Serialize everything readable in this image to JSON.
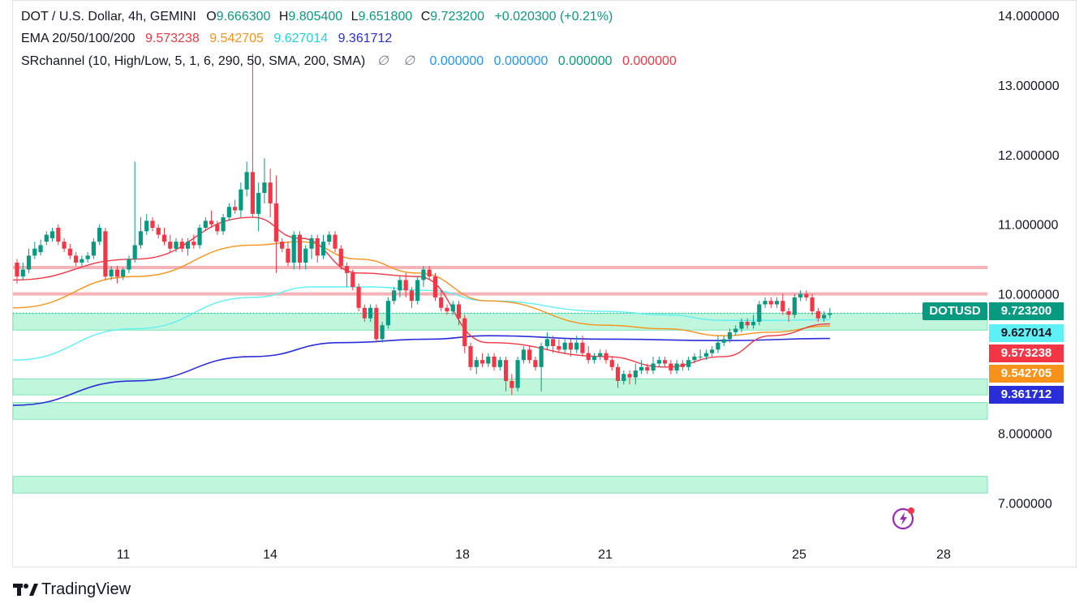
{
  "header": {
    "symbol": "DOT / U.S. Dollar, 4h, GEMINI",
    "o_label": "O",
    "o": "9.666300",
    "h_label": "H",
    "h": "9.805400",
    "l_label": "L",
    "l": "9.651800",
    "c_label": "C",
    "c": "9.723200",
    "change": "+0.020300 (+0.21%)"
  },
  "ema_legend": {
    "name": "EMA 20/50/100/200",
    "v20": "9.573238",
    "v50": "9.542705",
    "v100": "9.627014",
    "v200": "9.361712"
  },
  "sr_legend": {
    "name": "SRchannel (10, High/Low, 5, 1, 6, 290, 50, SMA, 200, SMA)",
    "na1": "∅",
    "na2": "∅",
    "v1": "0.000000",
    "v2": "0.000000",
    "v3": "0.000000",
    "v4": "0.000000"
  },
  "price_tags": {
    "symbol": "DOTUSD",
    "last": "9.723200",
    "ema100": "9.627014",
    "ema20": "9.573238",
    "ema50": "9.542705",
    "ema200": "9.361712"
  },
  "brand": {
    "name": "TradingView"
  },
  "colors": {
    "up": "#089981",
    "down": "#f23645",
    "ema20": "#f23645",
    "ema50": "#f7931a",
    "ema100": "#5ff0f5",
    "ema200": "#2a2ed8",
    "sr_zone": "#b9f5d8",
    "sr_line": "#f5b3b7"
  },
  "chart_data": {
    "type": "candlestick",
    "interval": "4h",
    "ylim": [
      6.6,
      14.2
    ],
    "y_ticks": [
      "14.000000",
      "13.000000",
      "12.000000",
      "11.000000",
      "10.000000",
      "8.000000",
      "7.000000"
    ],
    "x_ticks": [
      "11",
      "14",
      "18",
      "21",
      "25",
      "28"
    ],
    "candles": [
      [
        10.45,
        10.25,
        10.5,
        10.15
      ],
      [
        10.25,
        10.35,
        10.45,
        10.2
      ],
      [
        10.35,
        10.55,
        10.65,
        10.3
      ],
      [
        10.55,
        10.65,
        10.75,
        10.5
      ],
      [
        10.6,
        10.7,
        10.78,
        10.55
      ],
      [
        10.75,
        10.85,
        10.9,
        10.7
      ],
      [
        10.8,
        10.9,
        10.95,
        10.75
      ],
      [
        10.95,
        10.75,
        11.0,
        10.7
      ],
      [
        10.75,
        10.65,
        10.8,
        10.6
      ],
      [
        10.65,
        10.55,
        10.72,
        10.5
      ],
      [
        10.55,
        10.45,
        10.6,
        10.4
      ],
      [
        10.45,
        10.5,
        10.55,
        10.4
      ],
      [
        10.5,
        10.55,
        10.6,
        10.45
      ],
      [
        10.55,
        10.75,
        10.8,
        10.5
      ],
      [
        10.75,
        10.95,
        11.0,
        10.7
      ],
      [
        10.9,
        10.25,
        10.95,
        10.2
      ],
      [
        10.25,
        10.35,
        10.4,
        10.2
      ],
      [
        10.35,
        10.25,
        10.4,
        10.15
      ],
      [
        10.25,
        10.35,
        10.38,
        10.2
      ],
      [
        10.35,
        10.5,
        10.55,
        10.3
      ],
      [
        10.5,
        10.7,
        11.9,
        10.45
      ],
      [
        10.7,
        10.9,
        11.1,
        10.65
      ],
      [
        10.9,
        11.05,
        11.15,
        10.85
      ],
      [
        11.05,
        10.95,
        11.1,
        10.9
      ],
      [
        10.95,
        10.85,
        11.0,
        10.8
      ],
      [
        10.85,
        10.75,
        10.95,
        10.7
      ],
      [
        10.75,
        10.65,
        10.85,
        10.6
      ],
      [
        10.65,
        10.75,
        10.8,
        10.6
      ],
      [
        10.75,
        10.65,
        10.8,
        10.6
      ],
      [
        10.65,
        10.75,
        10.8,
        10.55
      ],
      [
        10.75,
        10.7,
        10.85,
        10.65
      ],
      [
        10.7,
        10.95,
        11.0,
        10.65
      ],
      [
        10.95,
        11.05,
        11.1,
        10.9
      ],
      [
        11.05,
        11.0,
        11.2,
        10.95
      ],
      [
        11.0,
        10.9,
        11.05,
        10.85
      ],
      [
        10.9,
        11.1,
        11.15,
        10.85
      ],
      [
        11.1,
        11.25,
        11.3,
        11.05
      ],
      [
        11.25,
        11.2,
        11.35,
        11.15
      ],
      [
        11.2,
        11.5,
        11.6,
        11.1
      ],
      [
        11.5,
        11.75,
        11.9,
        11.4
      ],
      [
        11.75,
        11.15,
        13.45,
        11.1
      ],
      [
        11.15,
        11.45,
        11.6,
        10.9
      ],
      [
        11.45,
        11.6,
        11.95,
        11.3
      ],
      [
        11.6,
        11.3,
        11.8,
        11.1
      ],
      [
        11.3,
        10.75,
        11.7,
        10.3
      ],
      [
        10.75,
        10.65,
        10.8,
        10.6
      ],
      [
        10.65,
        10.45,
        10.75,
        10.4
      ],
      [
        10.45,
        10.85,
        10.9,
        10.35
      ],
      [
        10.85,
        10.45,
        10.9,
        10.35
      ],
      [
        10.45,
        10.65,
        10.7,
        10.35
      ],
      [
        10.65,
        10.8,
        10.85,
        10.5
      ],
      [
        10.8,
        10.55,
        10.85,
        10.45
      ],
      [
        10.55,
        10.75,
        10.85,
        10.5
      ],
      [
        10.75,
        10.85,
        10.9,
        10.7
      ],
      [
        10.85,
        10.65,
        10.9,
        10.6
      ],
      [
        10.65,
        10.4,
        10.7,
        10.35
      ],
      [
        10.4,
        10.3,
        10.45,
        10.1
      ],
      [
        10.3,
        10.1,
        10.35,
        10.05
      ],
      [
        10.1,
        9.8,
        10.15,
        9.75
      ],
      [
        9.8,
        9.65,
        9.85,
        9.6
      ],
      [
        9.65,
        9.8,
        9.85,
        9.6
      ],
      [
        9.8,
        9.35,
        9.85,
        9.3
      ],
      [
        9.35,
        9.55,
        9.6,
        9.3
      ],
      [
        9.55,
        9.9,
        9.95,
        9.5
      ],
      [
        9.9,
        10.05,
        10.1,
        9.85
      ],
      [
        10.05,
        10.2,
        10.25,
        9.95
      ],
      [
        10.2,
        10.05,
        10.3,
        9.95
      ],
      [
        10.05,
        9.9,
        10.1,
        9.8
      ],
      [
        9.9,
        10.2,
        10.25,
        9.85
      ],
      [
        10.2,
        10.35,
        10.4,
        10.1
      ],
      [
        10.35,
        10.25,
        10.4,
        10.2
      ],
      [
        10.25,
        9.95,
        10.3,
        9.9
      ],
      [
        9.95,
        9.8,
        10.05,
        9.75
      ],
      [
        9.8,
        9.75,
        9.85,
        9.7
      ],
      [
        9.75,
        9.85,
        9.9,
        9.7
      ],
      [
        9.85,
        9.65,
        9.9,
        9.55
      ],
      [
        9.65,
        9.25,
        9.7,
        9.15
      ],
      [
        9.25,
        8.95,
        9.3,
        8.9
      ],
      [
        8.95,
        9.05,
        9.1,
        8.85
      ],
      [
        9.05,
        9.0,
        9.15,
        8.95
      ],
      [
        9.0,
        9.1,
        9.15,
        8.95
      ],
      [
        9.1,
        8.95,
        9.15,
        8.9
      ],
      [
        8.95,
        9.05,
        9.1,
        8.9
      ],
      [
        9.05,
        8.75,
        9.1,
        8.6
      ],
      [
        8.75,
        8.65,
        8.85,
        8.55
      ],
      [
        8.65,
        9.05,
        9.1,
        8.6
      ],
      [
        9.05,
        9.2,
        9.25,
        9.0
      ],
      [
        9.2,
        9.05,
        9.25,
        9.0
      ],
      [
        9.05,
        8.95,
        9.1,
        8.9
      ],
      [
        8.95,
        9.25,
        9.3,
        8.6
      ],
      [
        9.25,
        9.35,
        9.45,
        9.2
      ],
      [
        9.35,
        9.25,
        9.4,
        9.15
      ],
      [
        9.25,
        9.2,
        9.35,
        9.15
      ],
      [
        9.2,
        9.3,
        9.35,
        9.15
      ],
      [
        9.3,
        9.2,
        9.35,
        9.1
      ],
      [
        9.2,
        9.3,
        9.4,
        9.15
      ],
      [
        9.3,
        9.15,
        9.4,
        9.1
      ],
      [
        9.15,
        9.05,
        9.25,
        9.0
      ],
      [
        9.05,
        9.1,
        9.15,
        9.0
      ],
      [
        9.1,
        9.15,
        9.2,
        9.05
      ],
      [
        9.15,
        9.05,
        9.2,
        9.0
      ],
      [
        9.05,
        8.95,
        9.1,
        8.9
      ],
      [
        8.95,
        8.75,
        9.0,
        8.65
      ],
      [
        8.75,
        8.85,
        8.9,
        8.7
      ],
      [
        8.85,
        8.8,
        8.9,
        8.7
      ],
      [
        8.8,
        8.9,
        9.0,
        8.7
      ],
      [
        8.9,
        8.95,
        9.05,
        8.85
      ],
      [
        8.95,
        8.9,
        9.0,
        8.85
      ],
      [
        8.9,
        9.0,
        9.1,
        8.85
      ],
      [
        9.0,
        9.05,
        9.1,
        8.95
      ],
      [
        9.05,
        9.0,
        9.1,
        8.95
      ],
      [
        9.0,
        8.9,
        9.05,
        8.85
      ],
      [
        8.9,
        9.0,
        9.05,
        8.85
      ],
      [
        9.0,
        8.95,
        9.05,
        8.9
      ],
      [
        8.95,
        9.05,
        9.1,
        8.9
      ],
      [
        9.05,
        9.1,
        9.15,
        9.0
      ],
      [
        9.1,
        9.1,
        9.2,
        9.05
      ],
      [
        9.1,
        9.15,
        9.2,
        9.05
      ],
      [
        9.15,
        9.2,
        9.25,
        9.1
      ],
      [
        9.2,
        9.3,
        9.4,
        9.15
      ],
      [
        9.3,
        9.35,
        9.4,
        9.25
      ],
      [
        9.35,
        9.45,
        9.5,
        9.3
      ],
      [
        9.45,
        9.5,
        9.55,
        9.4
      ],
      [
        9.5,
        9.6,
        9.65,
        9.45
      ],
      [
        9.6,
        9.55,
        9.65,
        9.5
      ],
      [
        9.55,
        9.6,
        9.7,
        9.5
      ],
      [
        9.6,
        9.85,
        9.9,
        9.55
      ],
      [
        9.85,
        9.9,
        9.95,
        9.8
      ],
      [
        9.9,
        9.85,
        9.95,
        9.8
      ],
      [
        9.85,
        9.9,
        9.95,
        9.8
      ],
      [
        9.9,
        9.75,
        10.0,
        9.7
      ],
      [
        9.75,
        9.7,
        9.8,
        9.6
      ],
      [
        9.7,
        9.95,
        10.0,
        9.65
      ],
      [
        9.95,
        10.0,
        10.05,
        9.9
      ],
      [
        10.0,
        9.95,
        10.05,
        9.9
      ],
      [
        9.95,
        9.75,
        10.0,
        9.7
      ],
      [
        9.75,
        9.65,
        9.8,
        9.6
      ],
      [
        9.65,
        9.7,
        9.75,
        9.6
      ],
      [
        9.7,
        9.72,
        9.8,
        9.65
      ]
    ],
    "ema": {
      "ema20": [
        [
          0,
          10.2
        ],
        [
          20,
          10.5
        ],
        [
          40,
          11.1
        ],
        [
          48,
          10.8
        ],
        [
          58,
          10.3
        ],
        [
          68,
          10.25
        ],
        [
          80,
          9.3
        ],
        [
          100,
          9.1
        ],
        [
          110,
          8.95
        ],
        [
          120,
          9.1
        ],
        [
          128,
          9.4
        ],
        [
          138,
          9.57
        ]
      ],
      "ema50": [
        [
          0,
          9.8
        ],
        [
          20,
          10.25
        ],
        [
          40,
          10.7
        ],
        [
          48,
          10.75
        ],
        [
          58,
          10.5
        ],
        [
          68,
          10.3
        ],
        [
          80,
          9.9
        ],
        [
          100,
          9.55
        ],
        [
          110,
          9.5
        ],
        [
          120,
          9.4
        ],
        [
          128,
          9.45
        ],
        [
          138,
          9.54
        ]
      ],
      "ema100": [
        [
          0,
          9.05
        ],
        [
          20,
          9.5
        ],
        [
          40,
          9.95
        ],
        [
          50,
          10.1
        ],
        [
          60,
          10.1
        ],
        [
          70,
          10.05
        ],
        [
          80,
          9.9
        ],
        [
          100,
          9.75
        ],
        [
          110,
          9.7
        ],
        [
          120,
          9.62
        ],
        [
          128,
          9.62
        ],
        [
          138,
          9.63
        ]
      ],
      "ema200": [
        [
          0,
          8.4
        ],
        [
          20,
          8.75
        ],
        [
          40,
          9.1
        ],
        [
          55,
          9.3
        ],
        [
          70,
          9.35
        ],
        [
          80,
          9.4
        ],
        [
          100,
          9.35
        ],
        [
          120,
          9.33
        ],
        [
          138,
          9.36
        ]
      ]
    },
    "sr_zones": [
      [
        9.48,
        9.72
      ],
      [
        8.55,
        8.78
      ],
      [
        8.2,
        8.44
      ],
      [
        7.14,
        7.38
      ]
    ],
    "sr_lines": [
      10.38,
      10.0
    ]
  }
}
